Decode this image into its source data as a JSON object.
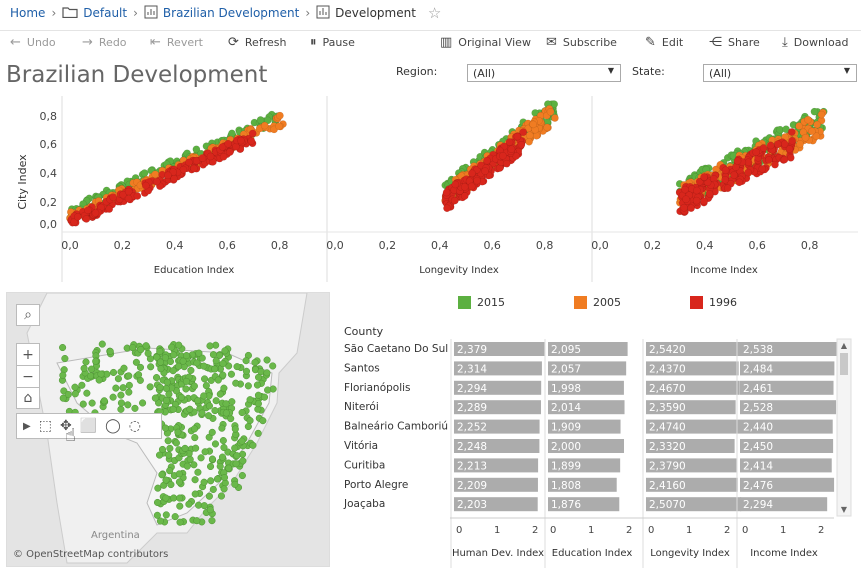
{
  "breadcrumb": {
    "home": "Home",
    "project": "Default",
    "workbook": "Brazilian Development",
    "view": "Development"
  },
  "toolbar": {
    "undo": "Undo",
    "redo": "Redo",
    "revert": "Revert",
    "refresh": "Refresh",
    "pause": "Pause",
    "original_view": "Original View",
    "subscribe": "Subscribe",
    "edit": "Edit",
    "share": "Share",
    "download": "Download"
  },
  "dashboard": {
    "title": "Brazilian Development",
    "filters": {
      "region_label": "Region:",
      "region_value": "(All)",
      "state_label": "State:",
      "state_value": "(All)"
    }
  },
  "scatter": {
    "ylabel": "City Index",
    "yticks": [
      "0,8",
      "0,6",
      "0,4",
      "0,2",
      "0,0"
    ],
    "xticks": [
      "0,0",
      "0,2",
      "0,4",
      "0,6",
      "0,8"
    ],
    "panels": [
      "Education Index",
      "Longevity Index",
      "Income Index"
    ]
  },
  "legend": [
    {
      "label": "2015",
      "color": "#5cb041"
    },
    {
      "label": "2005",
      "color": "#f07c22"
    },
    {
      "label": "1996",
      "color": "#d8261c"
    }
  ],
  "map": {
    "attribution": "© OpenStreetMap contributors",
    "country_label": "Argentina",
    "point_color": "#6ab84a"
  },
  "table": {
    "header": "County",
    "axis_ticks": [
      "0",
      "1",
      "2"
    ],
    "columns": [
      "Human Dev. Index",
      "Education Index",
      "Longevity Index",
      "Income Index"
    ],
    "rows": [
      {
        "county": "São Caetano Do Sul",
        "values": [
          "2,379",
          "2,095",
          "2,5420",
          "2,538"
        ]
      },
      {
        "county": "Santos",
        "values": [
          "2,314",
          "2,057",
          "2,4370",
          "2,484"
        ]
      },
      {
        "county": "Florianópolis",
        "values": [
          "2,294",
          "1,998",
          "2,4670",
          "2,461"
        ]
      },
      {
        "county": "Niterói",
        "values": [
          "2,289",
          "2,014",
          "2,3590",
          "2,528"
        ]
      },
      {
        "county": "Balneário Camboriú",
        "values": [
          "2,252",
          "1,909",
          "2,4740",
          "2,440"
        ]
      },
      {
        "county": "Vitória",
        "values": [
          "2,248",
          "2,000",
          "2,3320",
          "2,450"
        ]
      },
      {
        "county": "Curitiba",
        "values": [
          "2,213",
          "1,899",
          "2,3790",
          "2,414"
        ]
      },
      {
        "county": "Porto Alegre",
        "values": [
          "2,209",
          "1,808",
          "2,4160",
          "2,476"
        ]
      },
      {
        "county": "Joaçaba",
        "values": [
          "2,203",
          "1,876",
          "2,5070",
          "2,294"
        ]
      }
    ]
  }
}
